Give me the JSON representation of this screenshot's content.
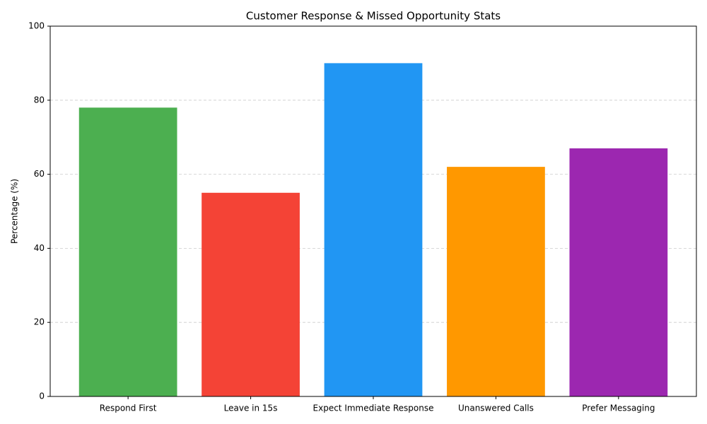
{
  "chart_data": {
    "type": "bar",
    "title": "Customer Response & Missed Opportunity Stats",
    "ylabel": "Percentage (%)",
    "categories": [
      "Respond First",
      "Leave in 15s",
      "Expect Immediate Response",
      "Unanswered Calls",
      "Prefer Messaging"
    ],
    "values": [
      78,
      55,
      90,
      62,
      67
    ],
    "colors": [
      "#4caf50",
      "#f44336",
      "#2196f3",
      "#ff9800",
      "#9c27b0"
    ],
    "ylim": [
      0,
      100
    ],
    "yticks": [
      0,
      20,
      40,
      60,
      80,
      100
    ],
    "grid": true
  }
}
